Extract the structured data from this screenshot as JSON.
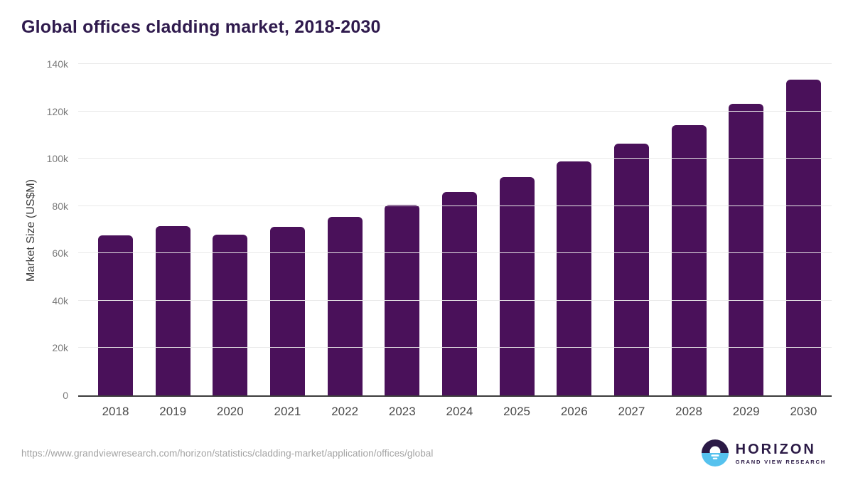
{
  "header": {
    "title": "Global offices cladding market, 2018-2030"
  },
  "chart_data": {
    "type": "bar",
    "title": "Global offices cladding market, 2018-2030",
    "xlabel": "",
    "ylabel": "Market Size (US$M)",
    "categories": [
      "2018",
      "2019",
      "2020",
      "2021",
      "2022",
      "2023",
      "2024",
      "2025",
      "2026",
      "2027",
      "2028",
      "2029",
      "2030"
    ],
    "values": [
      67500,
      71600,
      67900,
      71100,
      75500,
      80500,
      86000,
      92200,
      98800,
      106300,
      114200,
      123200,
      133500
    ],
    "ylim": [
      0,
      140000
    ],
    "yticks": [
      {
        "label": "0",
        "value": 0
      },
      {
        "label": "20k",
        "value": 20000
      },
      {
        "label": "40k",
        "value": 40000
      },
      {
        "label": "60k",
        "value": 60000
      },
      {
        "label": "80k",
        "value": 80000
      },
      {
        "label": "100k",
        "value": 100000
      },
      {
        "label": "120k",
        "value": 120000
      },
      {
        "label": "140k",
        "value": 140000
      }
    ],
    "grid": true,
    "legend": false,
    "bar_color": "#4a115a"
  },
  "footer": {
    "source_url": "https://www.grandviewresearch.com/horizon/statistics/cladding-market/application/offices/global",
    "logo": {
      "name": "HORIZON",
      "subtitle": "GRAND VIEW RESEARCH",
      "purple": "#2b1a46",
      "blue": "#56c2ee"
    }
  },
  "colors": {
    "bar": "#4a115a",
    "title": "#2f1a4d",
    "gridline": "#e9e9e9",
    "axis_line": "#3c3c3c",
    "ytick_text": "#7a7a7a",
    "xtick_text": "#4a4a4a",
    "url_text": "#a3a3a3"
  }
}
